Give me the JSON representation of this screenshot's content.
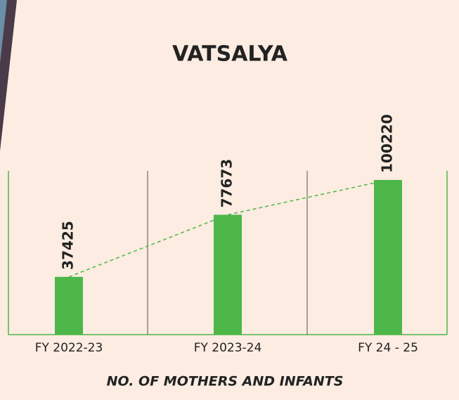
{
  "chart_data": {
    "type": "bar",
    "title": "VATSALYA",
    "categories": [
      "FY 2022-23",
      "FY 2023-24",
      "FY 24 - 25"
    ],
    "values": [
      37425,
      77673,
      100220
    ],
    "color": "#4cb748",
    "x_label": "NO. OF MOTHERS AND INFANTS"
  }
}
